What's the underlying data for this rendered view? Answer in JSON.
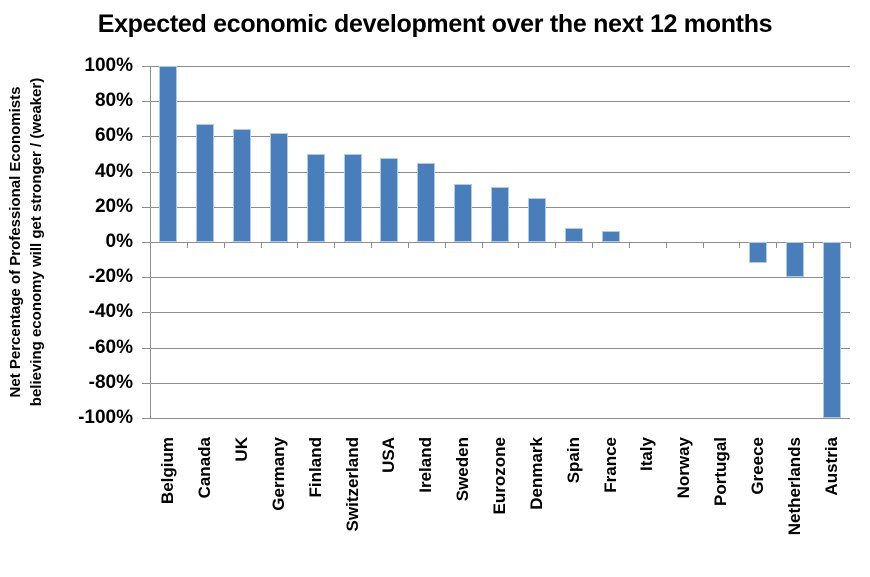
{
  "chart_data": {
    "type": "bar",
    "title": "Expected economic development over the next 12 months",
    "ylabel": "Net Percentage of Professional Economists believing economy will get stronger / (weaker)",
    "ylabel_lines": [
      "Net Percentage of Professional Economists",
      "believing economy will get stronger / (weaker)"
    ],
    "xlabel": "",
    "categories": [
      "Belgium",
      "Canada",
      "UK",
      "Germany",
      "Finland",
      "Switzerland",
      "USA",
      "Ireland",
      "Sweden",
      "Eurozone",
      "Denmark",
      "Spain",
      "France",
      "Italy",
      "Norway",
      "Portugal",
      "Greece",
      "Netherlands",
      "Austria"
    ],
    "values": [
      100,
      67,
      64,
      62,
      50,
      50,
      48,
      45,
      33,
      31,
      25,
      8,
      6,
      0,
      0,
      0,
      -12,
      -20,
      -100
    ],
    "ytick_labels": [
      "100%",
      "80%",
      "60%",
      "40%",
      "20%",
      "0%",
      "-20%",
      "-40%",
      "-60%",
      "-80%",
      "-100%"
    ],
    "ylim": [
      -100,
      100
    ],
    "ytick_step": 20,
    "grid": true,
    "legend": "none",
    "colors": {
      "bar_fill": "#4A7EBB",
      "bar_border": "#AECBEA",
      "gridline": "#8E8E8E",
      "axis": "#8E8E8E",
      "text": "#000000",
      "background": "#FFFFFF"
    }
  }
}
